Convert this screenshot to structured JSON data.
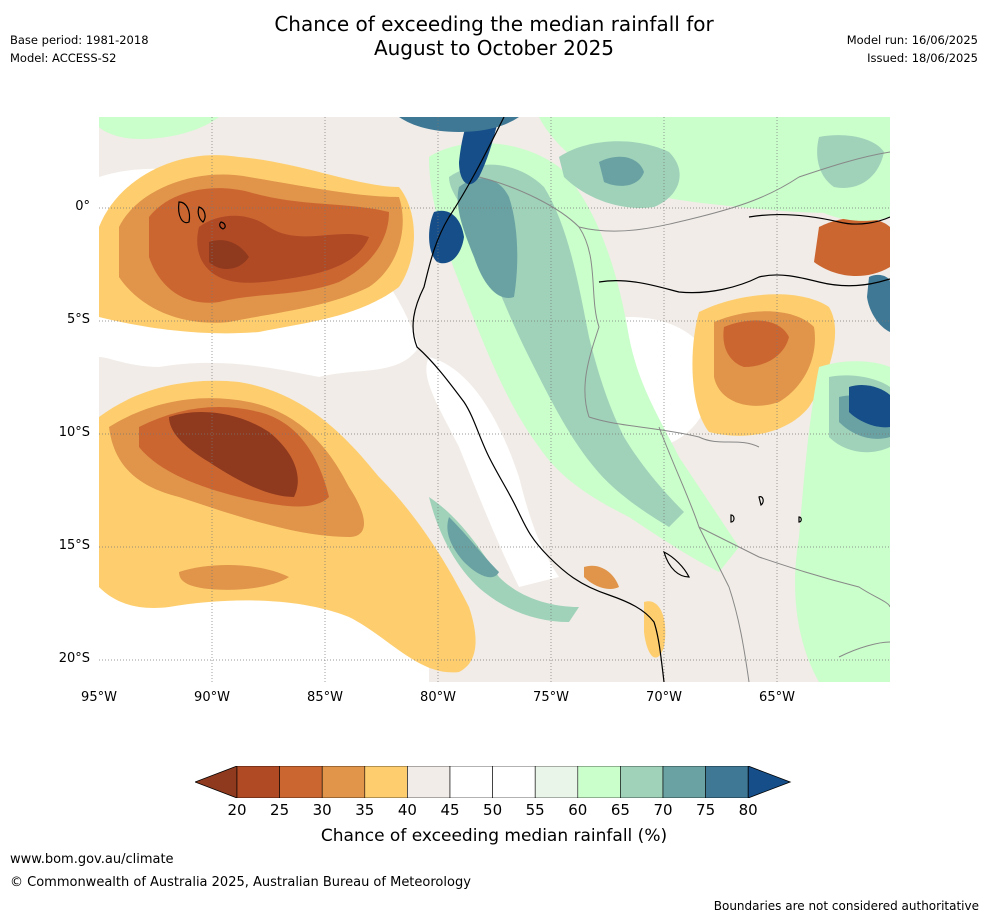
{
  "header": {
    "title_line1": "Chance of exceeding the median rainfall for",
    "title_line2": "August to October 2025",
    "base_period": "Base period: 1981-2018",
    "model": "Model: ACCESS-S2",
    "model_run": "Model run: 16/06/2025",
    "issued": "Issued: 18/06/2025"
  },
  "map": {
    "lat_labels": [
      "0°",
      "5°S",
      "10°S",
      "15°S",
      "20°S"
    ],
    "lon_labels": [
      "95°W",
      "90°W",
      "85°W",
      "80°W",
      "75°W",
      "70°W",
      "65°W"
    ],
    "gridlines": "dotted"
  },
  "colorbar": {
    "ticks": [
      "20",
      "25",
      "30",
      "35",
      "40",
      "45",
      "50",
      "55",
      "60",
      "65",
      "70",
      "75",
      "80"
    ],
    "colors": [
      "#8f3a1e",
      "#b04a25",
      "#cc6631",
      "#e0954a",
      "#fece6e",
      "#f1ece7",
      "#ffffff",
      "#ffffff",
      "#eaf5ea",
      "#cafecb",
      "#9fd2b9",
      "#6aa2a3",
      "#3f7895",
      "#154e88"
    ],
    "label": "Chance of exceeding median rainfall (%)"
  },
  "footer": {
    "url": "www.bom.gov.au/climate",
    "copyright": "© Commonwealth of Australia 2025, Australian Bureau of Meteorology",
    "disclaimer": "Boundaries are not considered authoritative"
  }
}
